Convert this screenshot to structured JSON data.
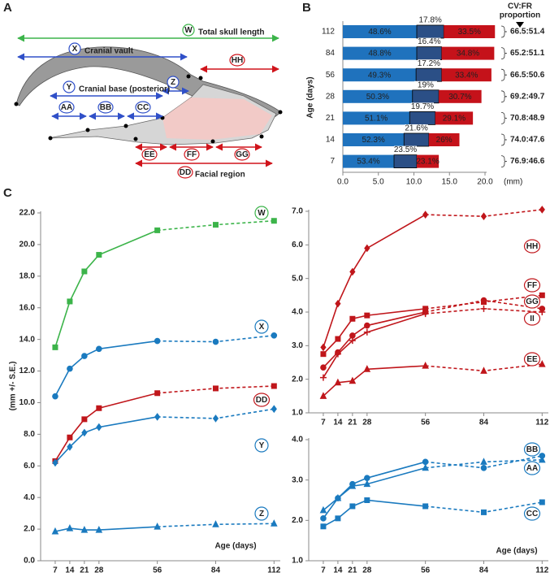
{
  "panels": [
    "A",
    "B",
    "C"
  ],
  "diagram": {
    "measures": [
      {
        "id": "W",
        "name": "Total skull length"
      },
      {
        "id": "X",
        "name": "Cranial vault"
      },
      {
        "id": "Y",
        "name": "Cranial base (posterior)"
      },
      {
        "id": "Z"
      },
      {
        "id": "AA"
      },
      {
        "id": "BB"
      },
      {
        "id": "CC"
      },
      {
        "id": "HH"
      },
      {
        "id": "EE"
      },
      {
        "id": "FF"
      },
      {
        "id": "GG"
      },
      {
        "id": "DD",
        "name": "Facial region"
      }
    ]
  },
  "chart_data": [
    {
      "type": "bar",
      "orientation": "horizontal",
      "stacked": true,
      "categories": [
        "112",
        "84",
        "56",
        "28",
        "21",
        "14",
        "7"
      ],
      "ylabel": "Age (days)",
      "xlabel": "(mm)",
      "xlim": [
        0,
        20
      ],
      "xticks": [
        {
          "value": 0,
          "label": "0.0"
        },
        {
          "value": 5,
          "label": "5.0"
        },
        {
          "value": 10,
          "label": "10.0"
        },
        {
          "value": 15,
          "label": "15.0"
        },
        {
          "value": 20,
          "label": "20.0"
        }
      ],
      "series": [
        {
          "color": "#1f72bd",
          "values": [
            10.4,
            10.4,
            10.3,
            9.8,
            9.4,
            8.6,
            7.2
          ],
          "segment_labels": [
            "48.6%",
            "48.8%",
            "49.3%",
            "50.3%",
            "51.1%",
            "52.3%",
            "53.4%"
          ]
        },
        {
          "color": "#2b4f86",
          "values": [
            3.8,
            3.5,
            3.6,
            3.7,
            3.6,
            3.5,
            3.2
          ],
          "segment_labels": [
            "17.8%",
            "16.4%",
            "17.2%",
            "19%",
            "19.7%",
            "21.6%",
            "23.5%"
          ]
        },
        {
          "color": "#c5121a",
          "values": [
            7.2,
            7.4,
            7.0,
            6.0,
            5.3,
            4.3,
            3.1
          ],
          "segment_labels": [
            "33.5%",
            "34.8%",
            "33.4%",
            "30.7%",
            "29.1%",
            "26%",
            "23.1%"
          ]
        }
      ],
      "right_header": [
        "CV:FR",
        "proportion"
      ],
      "right_labels": [
        "66.5:51.4",
        "65.2:51.1",
        "66.5:50.6",
        "69.2:49.7",
        "70.8:48.9",
        "74.0:47.6",
        "76.9:46.6"
      ]
    },
    {
      "type": "line",
      "x": [
        7,
        14,
        21,
        28,
        56,
        84,
        112
      ],
      "xlim": [
        0,
        115
      ],
      "xticks": [
        7,
        14,
        21,
        28,
        56,
        84,
        112
      ],
      "ylim": [
        0,
        22
      ],
      "yticks": [
        {
          "value": 0,
          "label": "0.0"
        },
        {
          "value": 2,
          "label": "2.0"
        },
        {
          "value": 4,
          "label": "4.0"
        },
        {
          "value": 6,
          "label": "6.0"
        },
        {
          "value": 8,
          "label": "8.0"
        },
        {
          "value": 10,
          "label": "10.0"
        },
        {
          "value": 12,
          "label": "12.0"
        },
        {
          "value": 14,
          "label": "14.0"
        },
        {
          "value": 16,
          "label": "16.0"
        },
        {
          "value": 18,
          "label": "18.0"
        },
        {
          "value": 20,
          "label": "20.0"
        },
        {
          "value": 22,
          "label": "22.0"
        }
      ],
      "ylabel": "(mm +/- S.E.)",
      "xlabel": "Age (days)",
      "dash_after_x": 56,
      "series": [
        {
          "name": "W",
          "color": "#3cb44a",
          "marker": "square",
          "values": [
            13.5,
            16.4,
            18.3,
            19.35,
            20.9,
            21.25,
            21.5
          ]
        },
        {
          "name": "X",
          "color": "#1a7abf",
          "marker": "circle",
          "values": [
            10.4,
            12.15,
            12.95,
            13.4,
            13.9,
            13.85,
            14.25
          ]
        },
        {
          "name": "DD",
          "color": "#c0161b",
          "marker": "square",
          "values": [
            6.3,
            7.8,
            8.95,
            9.65,
            10.6,
            10.9,
            11.05
          ]
        },
        {
          "name": "Y",
          "color": "#1a7abf",
          "marker": "diamond",
          "values": [
            6.2,
            7.2,
            8.1,
            8.45,
            9.1,
            9.0,
            9.6
          ]
        },
        {
          "name": "Z",
          "color": "#1a7abf",
          "marker": "triangle",
          "values": [
            1.85,
            2.05,
            1.95,
            1.95,
            2.15,
            2.3,
            2.35
          ]
        }
      ]
    },
    {
      "type": "line",
      "x": [
        7,
        14,
        21,
        28,
        56,
        84,
        112
      ],
      "xlim": [
        0,
        115
      ],
      "xticks": [
        7,
        14,
        21,
        28,
        56,
        84,
        112
      ],
      "ylim": [
        1,
        7
      ],
      "yticks": [
        {
          "value": 1,
          "label": "1.0"
        },
        {
          "value": 2,
          "label": "2.0"
        },
        {
          "value": 3,
          "label": "3.0"
        },
        {
          "value": 4,
          "label": "4.0"
        },
        {
          "value": 5,
          "label": "5.0"
        },
        {
          "value": 6,
          "label": "6.0"
        },
        {
          "value": 7,
          "label": "7.0"
        }
      ],
      "dash_after_x": 56,
      "series": [
        {
          "name": "HH",
          "color": "#c0161b",
          "marker": "diamond",
          "values": [
            2.95,
            4.25,
            5.2,
            5.9,
            6.9,
            6.85,
            7.05
          ]
        },
        {
          "name": "FF",
          "color": "#c0161b",
          "marker": "square",
          "values": [
            2.75,
            3.2,
            3.8,
            3.9,
            4.1,
            4.3,
            4.5
          ]
        },
        {
          "name": "GG",
          "color": "#c0161b",
          "marker": "circle",
          "values": [
            2.35,
            2.8,
            3.3,
            3.6,
            4.0,
            4.35,
            4.1
          ]
        },
        {
          "name": "II",
          "color": "#c0161b",
          "marker": "plus",
          "values": [
            2.05,
            2.75,
            3.15,
            3.4,
            3.95,
            4.1,
            4.0
          ]
        },
        {
          "name": "EE",
          "color": "#c0161b",
          "marker": "triangle",
          "values": [
            1.5,
            1.9,
            1.95,
            2.3,
            2.4,
            2.25,
            2.45
          ]
        }
      ]
    },
    {
      "type": "line",
      "x": [
        7,
        14,
        21,
        28,
        56,
        84,
        112
      ],
      "xlim": [
        0,
        115
      ],
      "xticks": [
        7,
        14,
        21,
        28,
        56,
        84,
        112
      ],
      "ylim": [
        1,
        4
      ],
      "yticks": [
        {
          "value": 1,
          "label": "1.0"
        },
        {
          "value": 2,
          "label": "2.0"
        },
        {
          "value": 3,
          "label": "3.0"
        },
        {
          "value": 4,
          "label": "4.0"
        }
      ],
      "xlabel": "Age (days)",
      "dash_after_x": 56,
      "series": [
        {
          "name": "BB",
          "color": "#1a7abf",
          "marker": "circle",
          "values": [
            2.05,
            2.55,
            2.9,
            3.05,
            3.45,
            3.3,
            3.6
          ]
        },
        {
          "name": "AA",
          "color": "#1a7abf",
          "marker": "triangle",
          "values": [
            2.25,
            2.55,
            2.85,
            2.9,
            3.3,
            3.45,
            3.5
          ]
        },
        {
          "name": "CC",
          "color": "#1a7abf",
          "marker": "square",
          "values": [
            1.85,
            2.05,
            2.35,
            2.5,
            2.35,
            2.2,
            2.45
          ]
        }
      ]
    }
  ]
}
